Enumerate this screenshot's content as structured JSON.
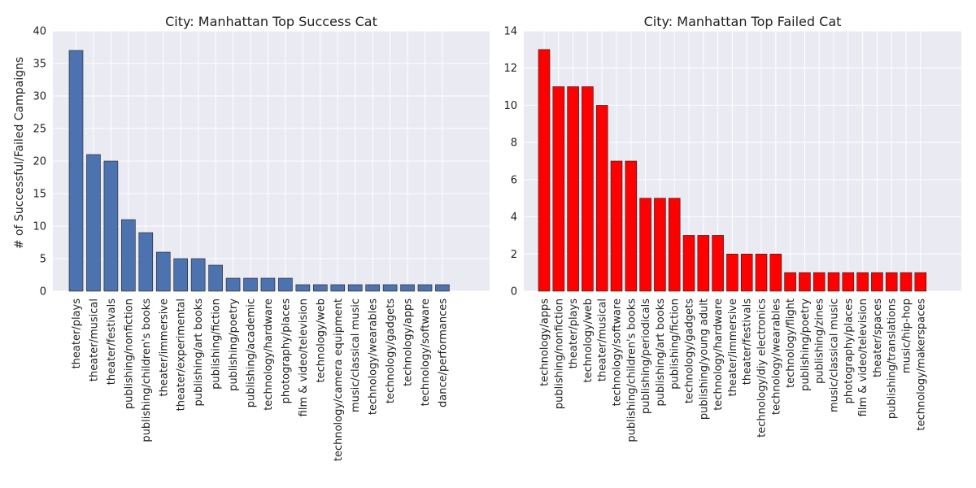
{
  "chart_data": [
    {
      "type": "bar",
      "title": "City: Manhattan Top Success Cat",
      "xlabel": "",
      "ylabel": "# of Successful/Failed Campaigns",
      "ylim": [
        0,
        40
      ],
      "yticks": [
        0,
        5,
        10,
        15,
        20,
        25,
        30,
        35,
        40
      ],
      "grid": true,
      "bar_color": "#4c72b0",
      "categories": [
        "theater/plays",
        "theater/musical",
        "theater/festivals",
        "publishing/nonfiction",
        "publishing/children's books",
        "theater/immersive",
        "theater/experimental",
        "publishing/art books",
        "publishing/fiction",
        "publishing/poetry",
        "publishing/academic",
        "technology/hardware",
        "photography/places",
        "film & video/television",
        "technology/web",
        "technology/camera equipment",
        "music/classical music",
        "technology/wearables",
        "technology/gadgets",
        "technology/apps",
        "technology/software",
        "dance/performances"
      ],
      "values": [
        37,
        21,
        20,
        11,
        9,
        6,
        5,
        5,
        4,
        2,
        2,
        2,
        2,
        1,
        1,
        1,
        1,
        1,
        1,
        1,
        1,
        1
      ]
    },
    {
      "type": "bar",
      "title": "City: Manhattan Top Failed Cat",
      "xlabel": "",
      "ylabel": "",
      "ylim": [
        0,
        14
      ],
      "yticks": [
        0,
        2,
        4,
        6,
        8,
        10,
        12,
        14
      ],
      "grid": true,
      "bar_color": "#ff0000",
      "categories": [
        "technology/apps",
        "publishing/nonfiction",
        "theater/plays",
        "technology/web",
        "theater/musical",
        "technology/software",
        "publishing/children's books",
        "publishing/periodicals",
        "publishing/art books",
        "publishing/fiction",
        "technology/gadgets",
        "publishing/young adult",
        "technology/hardware",
        "theater/immersive",
        "theater/festivals",
        "technology/diy electronics",
        "technology/wearables",
        "technology/flight",
        "publishing/poetry",
        "publishing/zines",
        "music/classical music",
        "photography/places",
        "film & video/television",
        "theater/spaces",
        "publishing/translations",
        "music/hip-hop",
        "technology/makerspaces"
      ],
      "values": [
        13,
        11,
        11,
        11,
        10,
        7,
        7,
        5,
        5,
        5,
        3,
        3,
        3,
        2,
        2,
        2,
        2,
        1,
        1,
        1,
        1,
        1,
        1,
        1,
        1,
        1,
        1
      ]
    }
  ]
}
